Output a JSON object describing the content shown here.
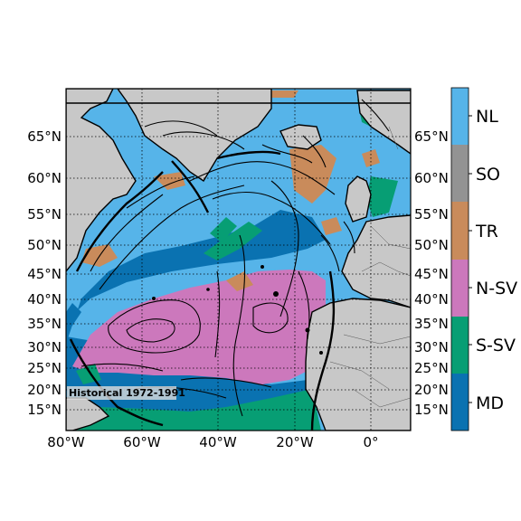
{
  "map": {
    "inset_label": "Historical 1972-1991",
    "lat_labels": [
      "15°N",
      "20°N",
      "25°N",
      "30°N",
      "35°N",
      "40°N",
      "45°N",
      "50°N",
      "55°N",
      "60°N",
      "65°N"
    ],
    "lon_labels": [
      "80°W",
      "60°W",
      "40°W",
      "20°W",
      "0°"
    ],
    "grid_style": "dotted",
    "colors": {
      "land": "#c8c8c8",
      "MD": "#0a72b1",
      "S-SV": "#079e74",
      "N-SV": "#cc78bc",
      "TR": "#c98b5b",
      "SO": "#939393",
      "NL": "#56b4e9",
      "contour": "#000000"
    }
  },
  "colorbar": {
    "categories": [
      "MD",
      "S-SV",
      "N-SV",
      "TR",
      "SO",
      "NL"
    ]
  }
}
